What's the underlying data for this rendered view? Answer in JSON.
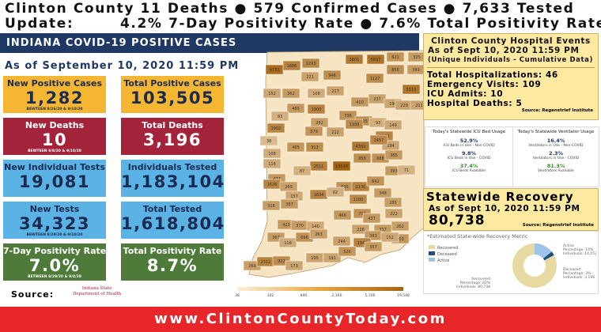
{
  "header": {
    "line1": "Clinton County 11 Deaths ● 579 Confirmed Cases ● 7,633 Tested",
    "line2_label": "Update:",
    "line2": "4.2% 7-Day Positivity Rate ● 7.6% Total Positivity Rate"
  },
  "banner": "INDIANA COVID-19 POSITIVE CASES",
  "as_of": "As of September 10, 2020 11:59 PM",
  "boxes": [
    {
      "label": "New Positive Cases",
      "value": "1,282",
      "note": "BEWTEEN 8/26/20 & 9/10/20",
      "color": "#f5b731",
      "text_color": "#1b2b52"
    },
    {
      "label": "Total Positive Cases",
      "value": "103,505",
      "color": "#f5b731",
      "text_color": "#1b2b52"
    },
    {
      "label": "New Deaths",
      "value": "10",
      "note": "BEWTEEN 9/8/20 & 9/10/20",
      "color": "#a3233b",
      "text_color": "#ffffff"
    },
    {
      "label": "Total Deaths",
      "value": "3,196",
      "color": "#a3233b",
      "text_color": "#ffffff"
    },
    {
      "label": "New Individual Tests",
      "value": "19,081",
      "color": "#5ab3e4",
      "text_color": "#1b2b52"
    },
    {
      "label": "Individuals Tested",
      "value": "1,183,104",
      "color": "#5ab3e4",
      "text_color": "#1b2b52"
    },
    {
      "label": "New Tests",
      "value": "34,323",
      "note": "BEWTEEN 8/29/20 & 9/10/20",
      "color": "#5ab3e4",
      "text_color": "#1b2b52"
    },
    {
      "label": "Total Tested",
      "value": "1,618,804",
      "color": "#5ab3e4",
      "text_color": "#1b2b52"
    },
    {
      "label": "7-Day Positivity Rate",
      "value": "7.0%",
      "note": "BETWEEN 8/29/20 & 9/4/20",
      "color": "#4e7a3a",
      "text_color": "#ffffff"
    },
    {
      "label": "Total Positivity Rate",
      "value": "8.7%",
      "color": "#4e7a3a",
      "text_color": "#ffffff"
    }
  ],
  "source": {
    "label": "Source:",
    "logo": [
      "Indiana State",
      "Department of Health"
    ]
  },
  "map": {
    "counties": [
      9732,
      1886,
      1293,
      3801,
      5837,
      621,
      325,
      221,
      946,
      850,
      393,
      152,
      362,
      108,
      217,
      1127,
      237,
      5519,
      410,
      194,
      229,
      211,
      465,
      1900,
      83,
      282,
      736,
      795,
      93,
      149,
      1902,
      579,
      212,
      1189,
      1678,
      194,
      38,
      465,
      912,
      4369,
      1457,
      108,
      2511,
      19548,
      858,
      688,
      385,
      116,
      477,
      87,
      635,
      2130,
      642,
      393,
      71,
      1626,
      269,
      1834,
      82,
      1180,
      348,
      285,
      157,
      316,
      387,
      466,
      719,
      222,
      262,
      337,
      437,
      423,
      370,
      140,
      226,
      383,
      503,
      367,
      118,
      696,
      263,
      244,
      1945,
      152,
      357,
      269,
      2312,
      922,
      173,
      195,
      191,
      526
    ],
    "legend": [
      "38",
      "302",
      "800",
      "2,160",
      "5,700",
      "19,548"
    ]
  },
  "hospital": {
    "title": [
      "Clinton County Hospital Events",
      "As of Sept 10, 2020 11:59 PM",
      "(Unique Individuals - Cumulative Data)"
    ],
    "stats": [
      "Total Hospitalizations: 46",
      "Emergency Visits: 109",
      "ICU Admits: 10",
      "Hospital Deaths: 5"
    ],
    "source": "Source: Regenstrief Institute"
  },
  "icu": {
    "title": "Today's Statewide ICU Bed Usage",
    "items": [
      {
        "value": "52.9%",
        "label": "ICU Beds in Use - Non-COVID"
      },
      {
        "value": "9.8%",
        "label": "ICU Beds in Use - COVID"
      },
      {
        "value": "37.4%",
        "label": "ICU Beds Available"
      }
    ]
  },
  "ventilator": {
    "title": "Today's Statewide Ventilator Usage",
    "items": [
      {
        "value": "16.4%",
        "label": "Ventilators in Use - Non-COVID"
      },
      {
        "value": "2.3%",
        "label": "Ventilators in Use - COVID"
      },
      {
        "value": "81.3%",
        "label": "Ventilators Available"
      }
    ]
  },
  "recovery": {
    "title": "Statewide Recovery",
    "as_of": "As of Sept 10, 2020 11:59 PM",
    "value": "80,738",
    "source": "Source: Regenstrief Institute"
  },
  "recovery_chart": {
    "title": "*Estimated State-wide Recovery Metric",
    "slices": [
      {
        "name": "Recovered",
        "color": "#e6d9a2",
        "percent": 82,
        "percent_label": "Percentage: 82%",
        "individuals": "Individuals: 80,738"
      },
      {
        "name": "Deceased",
        "color": "#1f4e79",
        "percent": 3,
        "percent_label": "Percentage: 3%",
        "individuals": "Individuals: 3,196"
      },
      {
        "name": "Active",
        "color": "#9dc3e6",
        "percent": 14,
        "percent_label": "Percentage: 14%",
        "individuals": "Individuals: 14,157"
      }
    ]
  },
  "footer": "www.ClintonCountyToday.com"
}
